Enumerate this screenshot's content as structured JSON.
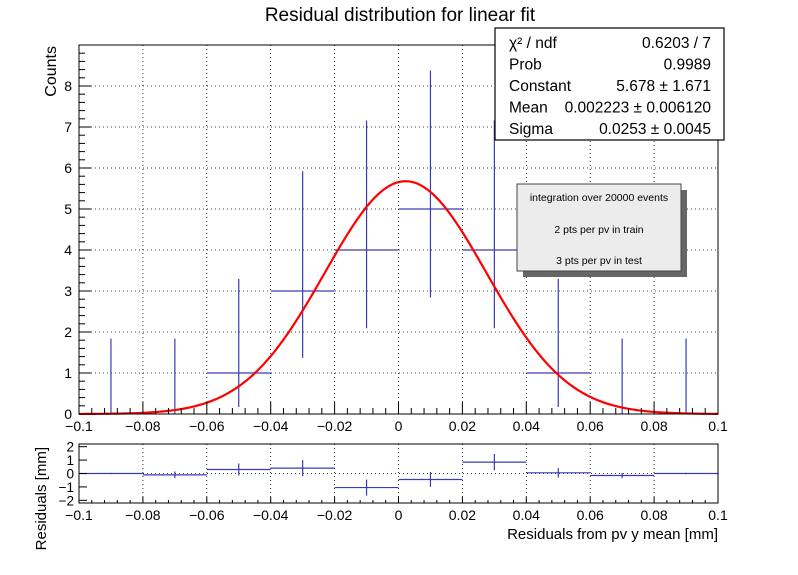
{
  "chart_data": {
    "type": "histogram",
    "title": "Residual distribution for linear fit",
    "xlabel": "Residuals from pv y mean  [mm]",
    "ylabel": "Counts",
    "xlim": [
      -0.1,
      0.1
    ],
    "ylim": [
      0,
      9
    ],
    "x_ticks": [
      "−0.1",
      "−0.08",
      "−0.06",
      "−0.04",
      "−0.02",
      "0",
      "0.02",
      "0.04",
      "0.06",
      "0.08",
      "0.1"
    ],
    "y_ticks": [
      "0",
      "1",
      "2",
      "3",
      "4",
      "5",
      "6",
      "7",
      "8"
    ],
    "bin_width": 0.02,
    "bins": [
      {
        "x": -0.09,
        "count": 0,
        "err_up": 1.84
      },
      {
        "x": -0.07,
        "count": 0,
        "err_up": 1.84
      },
      {
        "x": -0.05,
        "count": 1,
        "err_low": 0.83,
        "err_up": 2.3
      },
      {
        "x": -0.03,
        "count": 3,
        "err_low": 1.63,
        "err_up": 2.92
      },
      {
        "x": -0.01,
        "count": 4,
        "err_low": 1.91,
        "err_up": 3.16
      },
      {
        "x": 0.01,
        "count": 5,
        "err_low": 2.16,
        "err_up": 3.38
      },
      {
        "x": 0.03,
        "count": 4,
        "err_low": 1.91,
        "err_up": 3.16
      },
      {
        "x": 0.05,
        "count": 1,
        "err_low": 0.83,
        "err_up": 2.3
      },
      {
        "x": 0.07,
        "count": 0,
        "err_up": 1.84
      },
      {
        "x": 0.09,
        "count": 0,
        "err_up": 1.84
      }
    ],
    "fit": {
      "function": "gaus",
      "constant": 5.678,
      "mean": 0.002223,
      "sigma": 0.0253,
      "color": "#ff0000"
    },
    "hist_color": "#3b3bb3",
    "grid": true,
    "stats_box": [
      {
        "label": "χ² / ndf",
        "value": "0.6203 / 7"
      },
      {
        "label": "Prob",
        "value": "0.9989"
      },
      {
        "label": "Constant",
        "value": "5.678 ± 1.671"
      },
      {
        "label": "Mean",
        "value": "0.002223 ± 0.006120"
      },
      {
        "label": "Sigma",
        "value": "0.0253 ± 0.0045"
      }
    ],
    "annotation": [
      "integration over 20000 events",
      "2 pts per pv in train",
      "3 pts per pv in test"
    ],
    "residuals_panel": {
      "ylabel": "Residuals [mm]",
      "ylim": [
        -2.2,
        2.2
      ],
      "y_ticks": [
        "2",
        "1",
        "0",
        "−1",
        "−2"
      ],
      "points": [
        {
          "x": -0.09,
          "value": 0.0,
          "err": 0.05
        },
        {
          "x": -0.07,
          "value": -0.1,
          "err": 0.25
        },
        {
          "x": -0.05,
          "value": 0.3,
          "err": 0.45
        },
        {
          "x": -0.03,
          "value": 0.4,
          "err": 0.6
        },
        {
          "x": -0.01,
          "value": -1.05,
          "err": 0.6
        },
        {
          "x": 0.01,
          "value": -0.45,
          "err": 0.55
        },
        {
          "x": 0.03,
          "value": 0.85,
          "err": 0.6
        },
        {
          "x": 0.05,
          "value": 0.05,
          "err": 0.35
        },
        {
          "x": 0.07,
          "value": -0.15,
          "err": 0.2
        },
        {
          "x": 0.09,
          "value": 0.0,
          "err": 0.05
        }
      ]
    }
  }
}
